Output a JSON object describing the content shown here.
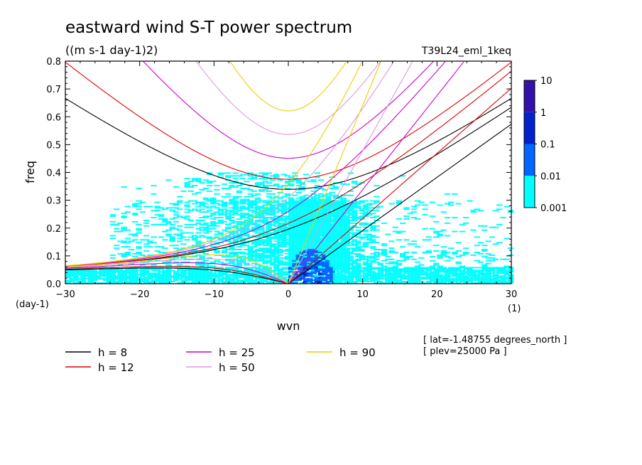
{
  "chart_data": {
    "type": "heatmap",
    "title": "eastward wind S-T power spectrum",
    "subtitle": "((m s-1 day-1)2)",
    "run_label": "T39L24_eml_1keq",
    "xlabel": "wvn",
    "ylabel": "freq",
    "x_unit": "(1)",
    "y_unit": "(day-1)",
    "xlim": [
      -30,
      30
    ],
    "ylim": [
      0,
      0.8
    ],
    "x_ticks": [
      -30,
      -20,
      -10,
      0,
      10,
      20,
      30
    ],
    "y_ticks": [
      0.0,
      0.1,
      0.2,
      0.3,
      0.4,
      0.5,
      0.6,
      0.7,
      0.8
    ],
    "colorbar": {
      "levels": [
        "0.001",
        "0.01",
        "0.1",
        "1",
        "10"
      ],
      "colors": [
        "#00ffff",
        "#0066ff",
        "#0022cc",
        "#3311aa"
      ]
    },
    "info": [
      "[ lat=-1.48755 degrees_north ]",
      "[ plev=25000 Pa ]"
    ],
    "series": [
      {
        "name": "h =  8",
        "h": 8,
        "color": "#000000"
      },
      {
        "name": "h = 12",
        "h": 12,
        "color": "#dd0000"
      },
      {
        "name": "h = 25",
        "h": 25,
        "color": "#cc00cc"
      },
      {
        "name": "h = 50",
        "h": 50,
        "color": "#dd99dd"
      },
      {
        "name": "h = 90",
        "h": 90,
        "color": "#eecc00"
      }
    ]
  }
}
